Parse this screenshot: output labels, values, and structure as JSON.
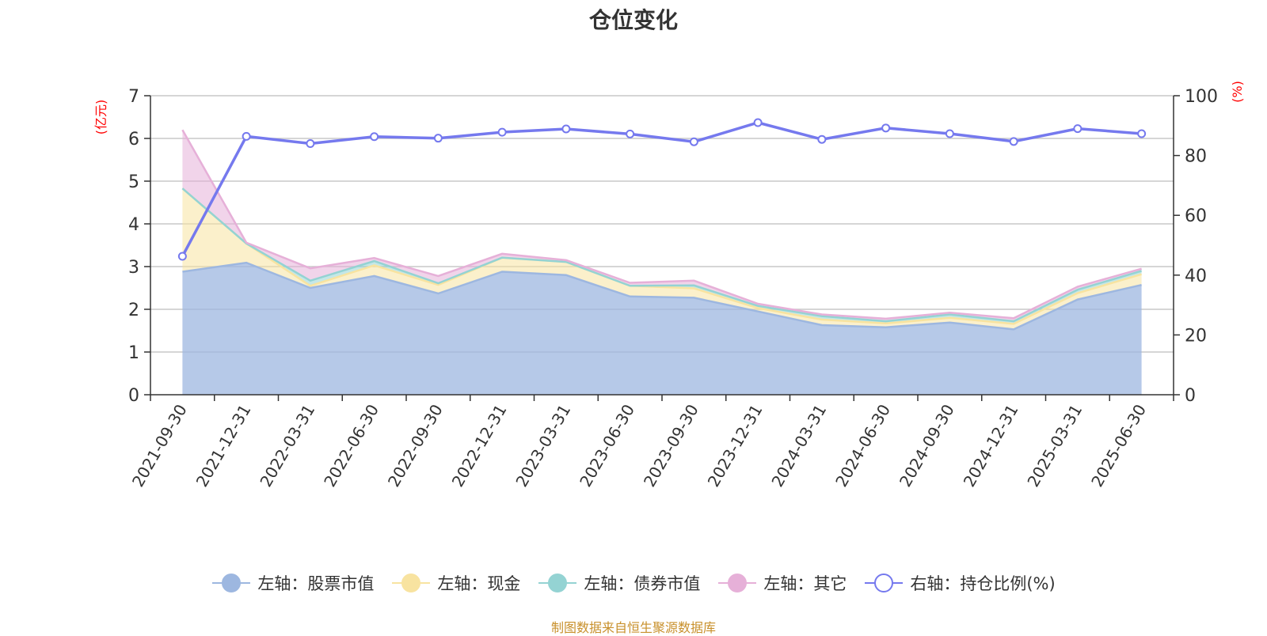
{
  "chart_data": {
    "type": "area",
    "title": "仓位变化",
    "categories": [
      "2021-09-30",
      "2021-12-31",
      "2022-03-31",
      "2022-06-30",
      "2022-09-30",
      "2022-12-31",
      "2023-03-31",
      "2023-06-30",
      "2023-09-30",
      "2023-12-31",
      "2024-03-31",
      "2024-06-30",
      "2024-09-30",
      "2024-12-31",
      "2025-03-31",
      "2025-06-30"
    ],
    "left_axis": {
      "label": "(亿元)",
      "ylim": [
        0,
        7
      ],
      "ticks": [
        "0",
        "1",
        "2",
        "3",
        "4",
        "5",
        "6",
        "7"
      ]
    },
    "right_axis": {
      "label": "(%)",
      "ylim": [
        0,
        100
      ],
      "ticks": [
        "0",
        "20",
        "40",
        "60",
        "80",
        "100"
      ]
    },
    "grid": true,
    "legend_position": "bottom",
    "series": [
      {
        "name": "左轴：股票市值",
        "axis": "left",
        "stacked": true,
        "color": "#9db7e0",
        "values": [
          2.88,
          3.09,
          2.5,
          2.78,
          2.37,
          2.88,
          2.8,
          2.3,
          2.27,
          1.95,
          1.63,
          1.58,
          1.69,
          1.53,
          2.23,
          2.57
        ]
      },
      {
        "name": "左轴：现金",
        "axis": "left",
        "stacked": true,
        "color": "#f8e3a0",
        "values": [
          1.95,
          0.45,
          0.05,
          0.25,
          0.2,
          0.33,
          0.31,
          0.25,
          0.22,
          0.08,
          0.13,
          0.09,
          0.11,
          0.13,
          0.15,
          0.25
        ]
      },
      {
        "name": "左轴：债券市值",
        "axis": "left",
        "stacked": true,
        "color": "#94d3d3",
        "values": [
          0.0,
          0.0,
          0.12,
          0.1,
          0.04,
          0.0,
          0.0,
          0.0,
          0.07,
          0.05,
          0.08,
          0.05,
          0.08,
          0.06,
          0.08,
          0.08
        ]
      },
      {
        "name": "左轴：其它",
        "axis": "left",
        "stacked": true,
        "color": "#e6b0d8",
        "values": [
          1.37,
          0.02,
          0.29,
          0.07,
          0.17,
          0.09,
          0.04,
          0.07,
          0.11,
          0.05,
          0.04,
          0.06,
          0.04,
          0.07,
          0.07,
          0.05
        ]
      },
      {
        "name": "右轴：持仓比例(%)",
        "axis": "right",
        "stacked": false,
        "color": "#7579ee",
        "values": [
          46.3,
          86.4,
          84.0,
          86.3,
          85.8,
          87.8,
          88.9,
          87.2,
          84.6,
          91.0,
          85.4,
          89.2,
          87.3,
          84.7,
          89.0,
          87.3
        ]
      }
    ]
  },
  "source_note": "制图数据来自恒生聚源数据库"
}
